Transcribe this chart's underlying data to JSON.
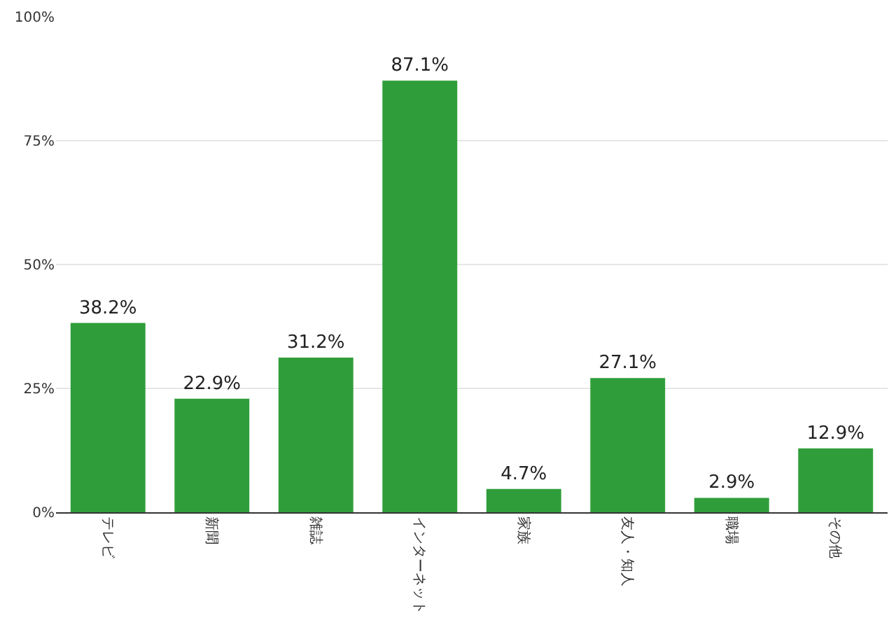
{
  "chart_data": {
    "type": "bar",
    "categories": [
      "テレビ",
      "新聞",
      "雑誌",
      "インターネット",
      "家族",
      "友人・知人",
      "職場",
      "その他"
    ],
    "values": [
      38.2,
      22.9,
      31.2,
      87.1,
      4.7,
      27.1,
      2.9,
      12.9
    ],
    "value_labels": [
      "38.2%",
      "22.9%",
      "31.2%",
      "87.1%",
      "4.7%",
      "27.1%",
      "2.9%",
      "12.9%"
    ],
    "color": "#2f9e3a",
    "ylim": [
      0,
      100
    ],
    "yticks": [
      {
        "value": 0,
        "label": "0%"
      },
      {
        "value": 25,
        "label": "25%"
      },
      {
        "value": 50,
        "label": "50%"
      },
      {
        "value": 75,
        "label": "75%"
      },
      {
        "value": 100,
        "label": "100%"
      }
    ],
    "grid": "y"
  }
}
